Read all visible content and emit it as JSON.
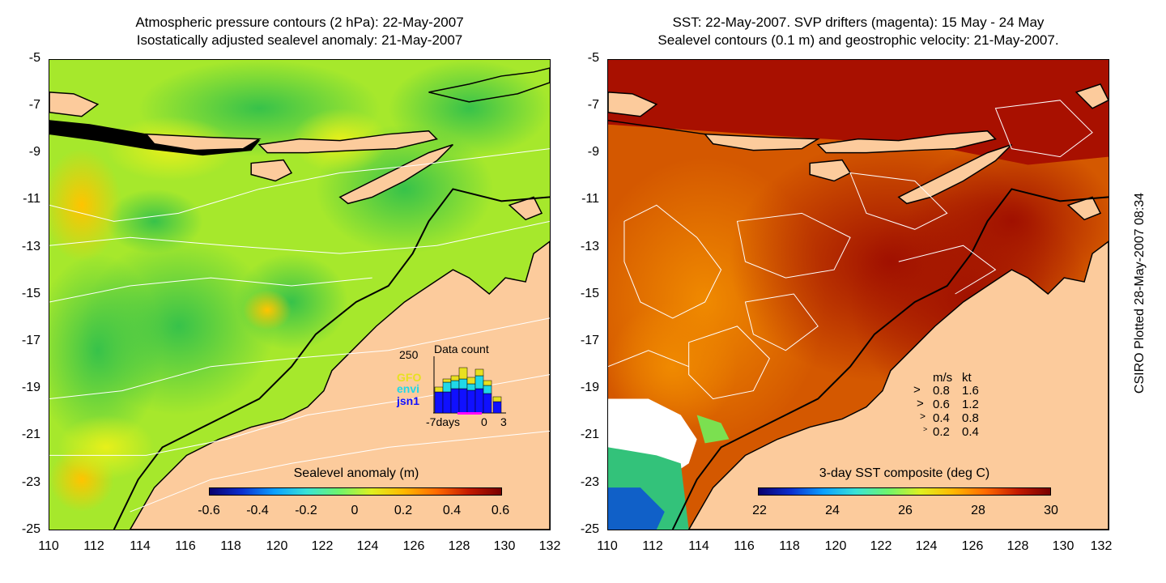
{
  "left_panel": {
    "title_line1": "Atmospheric pressure contours (2 hPa): 22-May-2007",
    "title_line2": "Isostatically adjusted sealevel anomaly: 21-May-2007",
    "colorbar_title": "Sealevel anomaly (m)",
    "colorbar_ticks": [
      "-0.6",
      "-0.4",
      "-0.2",
      "0",
      "0.2",
      "0.4",
      "0.6"
    ],
    "inset": {
      "title": "Data count",
      "y_max_label": "250",
      "legend": [
        {
          "name": "GFO",
          "color": "#e8e020"
        },
        {
          "name": "envi",
          "color": "#20d8e8"
        },
        {
          "name": "jsn1",
          "color": "#1010ff"
        }
      ],
      "x_labels": [
        "-7days",
        "0",
        "3"
      ]
    }
  },
  "right_panel": {
    "title_line1": "SST: 22-May-2007. SVP drifters (magenta): 15 May - 24 May",
    "title_line2": "Sealevel contours (0.1 m) and geostrophic velocity: 21-May-2007.",
    "colorbar_title": "3-day SST composite (deg C)",
    "colorbar_ticks": [
      "22",
      "24",
      "26",
      "28",
      "30"
    ],
    "velocity_legend": {
      "header_ms": "m/s",
      "header_kt": "kt",
      "rows": [
        {
          "ms": "0.8",
          "kt": "1.6"
        },
        {
          "ms": "0.6",
          "kt": "1.2"
        },
        {
          "ms": "0.4",
          "kt": "0.8"
        },
        {
          "ms": "0.2",
          "kt": "0.4"
        }
      ]
    }
  },
  "axes": {
    "lat_ticks": [
      "-5",
      "-7",
      "-9",
      "-11",
      "-13",
      "-15",
      "-17",
      "-19",
      "-21",
      "-23",
      "-25"
    ],
    "lon_ticks": [
      "110",
      "112",
      "114",
      "116",
      "118",
      "120",
      "122",
      "124",
      "126",
      "128",
      "130",
      "132"
    ]
  },
  "credit": "CSIRO Plotted 28-May-2007 08:34",
  "colors": {
    "land": "#fccb9c",
    "sla_base": "#9ee830",
    "sst_warm": "#a81000",
    "sst_mid": "#e07000"
  }
}
